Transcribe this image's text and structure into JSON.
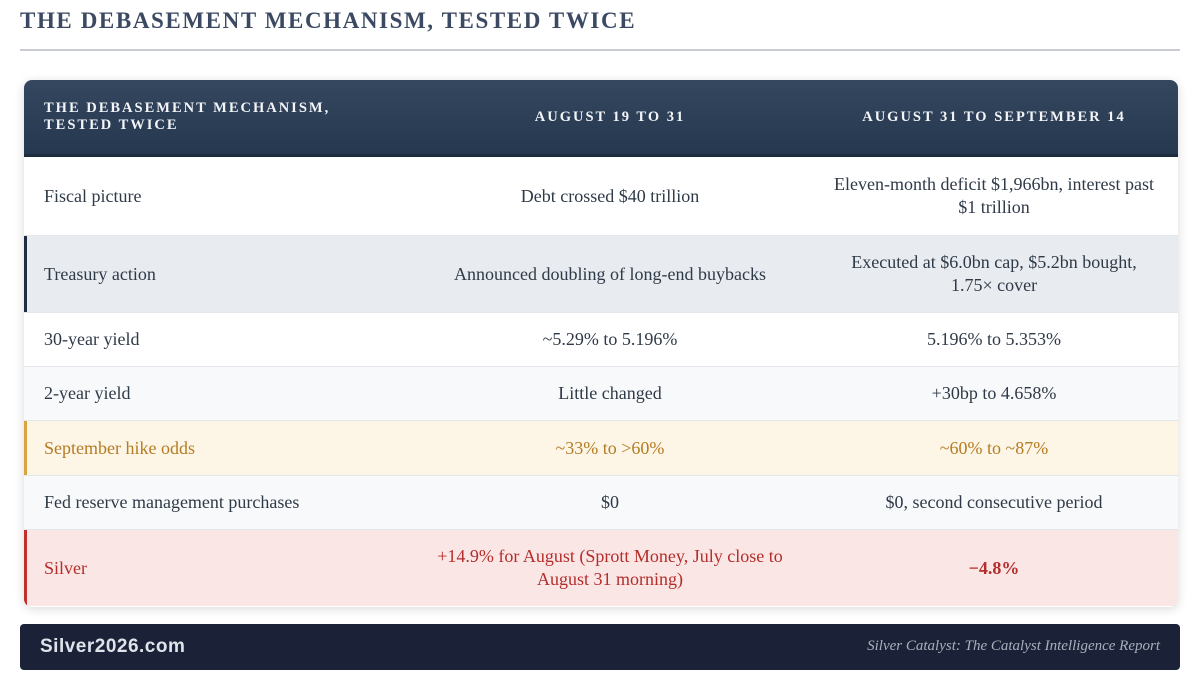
{
  "page_title": "THE DEBASEMENT MECHANISM, TESTED TWICE",
  "table": {
    "header": [
      "THE DEBASEMENT MECHANISM, TESTED TWICE",
      "AUGUST 19 TO 31",
      "AUGUST 31 TO SEPTEMBER 14"
    ],
    "rows": [
      [
        "Fiscal picture",
        "Debt crossed $40 trillion",
        "Eleven-month deficit $1,966bn, interest past $1 trillion"
      ],
      [
        "Treasury action",
        "Announced doubling of long-end buybacks",
        "Executed at $6.0bn cap, $5.2bn bought, 1.75× cover"
      ],
      [
        "30-year yield",
        "~5.29% to 5.196%",
        "5.196% to 5.353%"
      ],
      [
        "2-year yield",
        "Little changed",
        "+30bp to 4.658%"
      ],
      [
        "September hike odds",
        "~33% to >60%",
        "~60% to ~87%"
      ],
      [
        "Fed reserve management purchases",
        "$0",
        "$0, second consecutive period"
      ],
      [
        "Silver",
        "+14.9% for August (Sprott Money, July close to August 31 morning)",
        "−4.8%"
      ]
    ]
  },
  "footer": {
    "brand": "Silver2026.com",
    "tagline": "Silver Catalyst: The Catalyst Intelligence Report"
  }
}
